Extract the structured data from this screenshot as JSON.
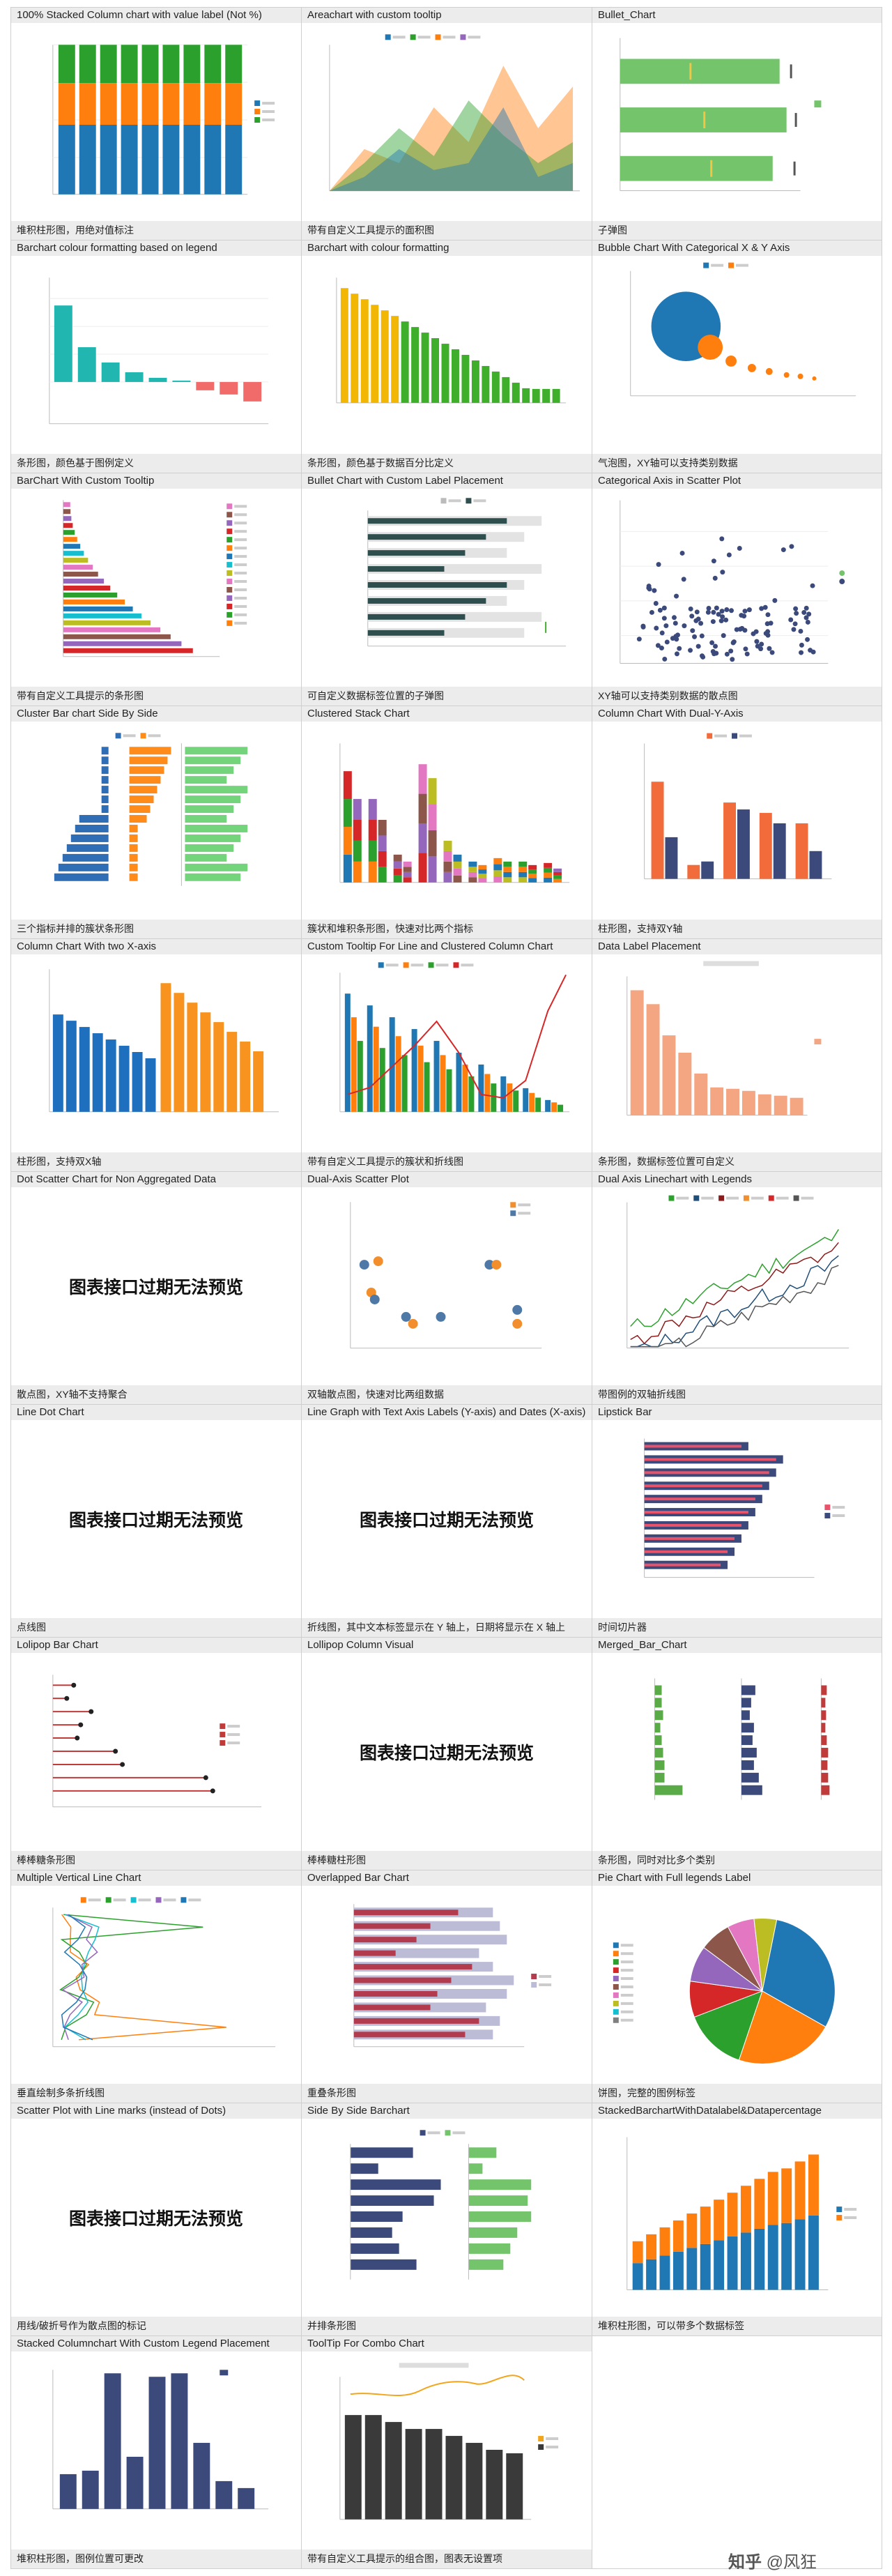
{
  "tiles": [
    {
      "title": "100% Stacked Column chart with value label (Not %)",
      "caption": "堆积柱形图，用绝对值标注",
      "preview": "stacked100"
    },
    {
      "title": "Areachart with custom tooltip",
      "caption": "带有自定义工具提示的面积图",
      "preview": "area"
    },
    {
      "title": "Bullet_Chart",
      "caption": "子弹图",
      "preview": "bullet"
    },
    {
      "title": "Barchart colour formatting based on legend",
      "caption": "条形图，颜色基于图例定义",
      "preview": "barLegend"
    },
    {
      "title": "Barchart with colour formatting",
      "caption": "条形图，颜色基于数据百分比定义",
      "preview": "barColour"
    },
    {
      "title": "Bubble Chart With Categorical X & Y Axis",
      "caption": "气泡图，XY轴可以支持类别数据",
      "preview": "bubble"
    },
    {
      "title": "BarChart With Custom Tooltip",
      "caption": "带有自定义工具提示的条形图",
      "preview": "hbarTooltip"
    },
    {
      "title": "Bullet Chart with Custom Label Placement",
      "caption": "可自定义数据标签位置的子弹图",
      "preview": "bulletLabel"
    },
    {
      "title": "Categorical Axis in Scatter Plot",
      "caption": "XY轴可以支持类别数据的散点图",
      "preview": "scatterCat"
    },
    {
      "title": "Cluster Bar chart Side By Side",
      "caption": "三个指标并排的簇状条形图",
      "preview": "clusterSide"
    },
    {
      "title": "Clustered Stack Chart",
      "caption": "簇状和堆积条形图，快速对比两个指标",
      "preview": "clusterStack"
    },
    {
      "title": "Column Chart With Dual-Y-Axis",
      "caption": "柱形图，支持双Y轴",
      "preview": "dualY"
    },
    {
      "title": "Column Chart With two X-axis",
      "caption": "柱形图，支持双X轴",
      "preview": "twoX"
    },
    {
      "title": "Custom Tooltip For Line and Clustered Column Chart",
      "caption": "带有自定义工具提示的簇状和折线图",
      "preview": "combo"
    },
    {
      "title": "Data Label Placement",
      "caption": "条形图，数据标签位置可自定义",
      "preview": "dataLabel"
    },
    {
      "title": "Dot Scatter Chart for Non Aggregated Data",
      "caption": "散点图，XY轴不支持聚合",
      "preview": "expired"
    },
    {
      "title": "Dual-Axis Scatter Plot",
      "caption": "双轴散点图，快速对比两组数据",
      "preview": "dualScatter"
    },
    {
      "title": "Dual Axis Linechart with Legends",
      "caption": "带图例的双轴折线图",
      "preview": "dualLine"
    },
    {
      "title": "Line Dot Chart",
      "caption": "点线图",
      "preview": "expired"
    },
    {
      "title": "Line Graph with Text Axis Labels (Y-axis) and Dates (X-axis)",
      "caption": "折线图，其中文本标签显示在 Y 轴上，日期将显示在 X 轴上",
      "preview": "expired"
    },
    {
      "title": "Lipstick Bar",
      "caption": "时间切片器",
      "preview": "lipstick"
    },
    {
      "title": "Lolipop Bar Chart",
      "caption": "棒棒糖条形图",
      "preview": "lollipop"
    },
    {
      "title": "Lollipop Column Visual",
      "caption": "棒棒糖柱形图",
      "preview": "expired"
    },
    {
      "title": "Merged_Bar_Chart",
      "caption": "条形图，同时对比多个类别",
      "preview": "merged"
    },
    {
      "title": "Multiple Vertical Line Chart",
      "caption": "垂直绘制多条折线图",
      "preview": "vline"
    },
    {
      "title": "Overlapped Bar Chart",
      "caption": "重叠条形图",
      "preview": "overlap"
    },
    {
      "title": "Pie Chart with Full legends Label",
      "caption": "饼图，完整的图例标签",
      "preview": "pie"
    },
    {
      "title": "Scatter Plot with Line marks (instead of Dots)",
      "caption": "用线/破折号作为散点图的标记",
      "preview": "expired"
    },
    {
      "title": "Side By Side Barchart",
      "caption": "并排条形图",
      "preview": "sideBySide"
    },
    {
      "title": "StackedBarchartWithDatalabel&Datapercentage",
      "caption": "堆积柱形图，可以带多个数据标签",
      "preview": "stackedLabel"
    },
    {
      "title": "Stacked Columnchart With Custom Legend Placement",
      "caption": "堆积柱形图，图例位置可更改",
      "preview": "stackedLegend"
    },
    {
      "title": "ToolTip For Combo Chart",
      "caption": "带有自定义工具提示的组合图，图表无设置项",
      "preview": "comboTip"
    }
  ],
  "expired_text": "图表接口过期无法预览",
  "watermark": {
    "logo": "知乎",
    "author": "@风狂"
  },
  "colors": {
    "header_bg": "#ececec",
    "border": "#cfcfcf",
    "blue": "#1f77b4",
    "orange": "#ff7f0e",
    "green": "#2ca02c",
    "red": "#d62728",
    "navy": "#3b4a7a"
  }
}
